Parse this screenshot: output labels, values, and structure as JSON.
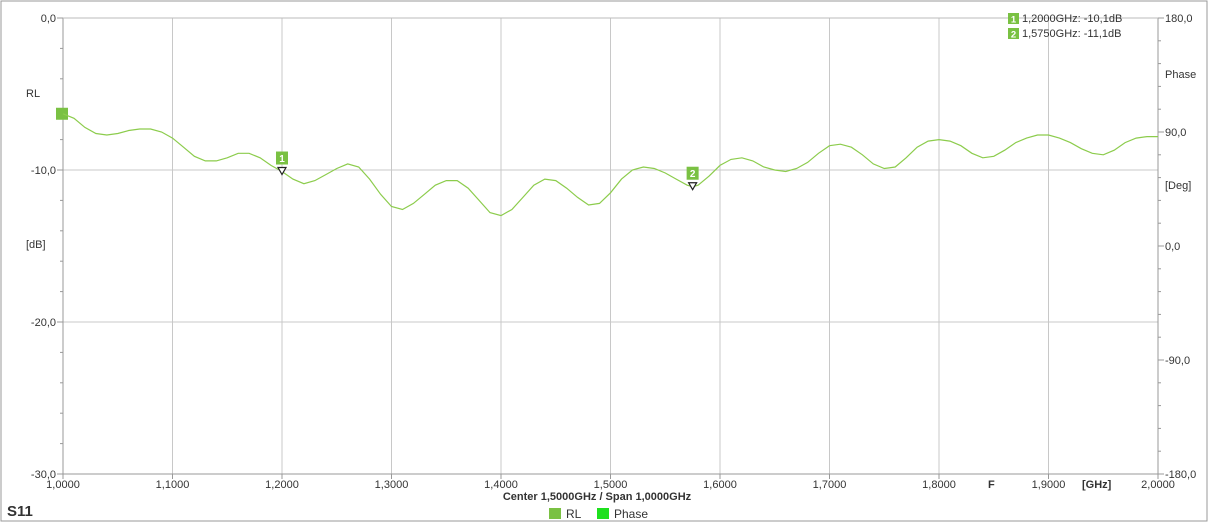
{
  "colors": {
    "trace": "#8ccc4c",
    "marker_fill": "#7ac143",
    "phase_legend": "#1ee01e",
    "grid": "#c8c8c8",
    "frame": "#999999"
  },
  "chart_data": {
    "type": "line",
    "title": "S11",
    "trace_label": "RL",
    "subtitle": "Center 1,5000GHz / Span 1,0000GHz",
    "xlabel_symbol": "F",
    "xunit": "[GHz]",
    "xlim": [
      1.0,
      2.0
    ],
    "x_ticks": [
      "1,0000",
      "1,1000",
      "1,2000",
      "1,3000",
      "1,4000",
      "1,5000",
      "1,6000",
      "1,7000",
      "1,8000",
      "1,9000",
      "2,0000"
    ],
    "y_left": {
      "unit": "[dB]",
      "ylim": [
        -30,
        0
      ],
      "tick_labels": [
        "0,0",
        "-10,0",
        "-20,0",
        "-30,0"
      ]
    },
    "y_right": {
      "title": "Phase",
      "unit": "[Deg]",
      "ylim": [
        -180,
        180
      ],
      "tick_labels": [
        "180,0",
        "90,0",
        "0,0",
        "-90,0",
        "-180,0"
      ]
    },
    "grid": true,
    "legend": [
      {
        "name": "RL"
      },
      {
        "name": "Phase"
      }
    ],
    "markers": [
      {
        "id": "1",
        "x": 1.2,
        "y": -10.1,
        "label": "1,2000GHz: -10,1dB"
      },
      {
        "id": "2",
        "x": 1.575,
        "y": -11.1,
        "label": "1,5750GHz: -11,1dB"
      }
    ],
    "series": [
      {
        "name": "RL",
        "points": [
          [
            1.0,
            -6.3
          ],
          [
            1.01,
            -6.6
          ],
          [
            1.02,
            -7.2
          ],
          [
            1.03,
            -7.6
          ],
          [
            1.04,
            -7.7
          ],
          [
            1.05,
            -7.6
          ],
          [
            1.06,
            -7.4
          ],
          [
            1.07,
            -7.3
          ],
          [
            1.08,
            -7.3
          ],
          [
            1.09,
            -7.5
          ],
          [
            1.1,
            -7.9
          ],
          [
            1.11,
            -8.5
          ],
          [
            1.12,
            -9.1
          ],
          [
            1.13,
            -9.4
          ],
          [
            1.14,
            -9.4
          ],
          [
            1.15,
            -9.2
          ],
          [
            1.16,
            -8.9
          ],
          [
            1.17,
            -8.9
          ],
          [
            1.18,
            -9.2
          ],
          [
            1.19,
            -9.7
          ],
          [
            1.2,
            -10.1
          ],
          [
            1.21,
            -10.6
          ],
          [
            1.22,
            -10.9
          ],
          [
            1.23,
            -10.7
          ],
          [
            1.24,
            -10.3
          ],
          [
            1.25,
            -9.9
          ],
          [
            1.26,
            -9.6
          ],
          [
            1.27,
            -9.8
          ],
          [
            1.28,
            -10.6
          ],
          [
            1.29,
            -11.6
          ],
          [
            1.3,
            -12.4
          ],
          [
            1.31,
            -12.6
          ],
          [
            1.32,
            -12.2
          ],
          [
            1.33,
            -11.6
          ],
          [
            1.34,
            -11.0
          ],
          [
            1.35,
            -10.7
          ],
          [
            1.36,
            -10.7
          ],
          [
            1.37,
            -11.2
          ],
          [
            1.38,
            -12.0
          ],
          [
            1.39,
            -12.8
          ],
          [
            1.4,
            -13.0
          ],
          [
            1.41,
            -12.6
          ],
          [
            1.42,
            -11.8
          ],
          [
            1.43,
            -11.0
          ],
          [
            1.44,
            -10.6
          ],
          [
            1.45,
            -10.7
          ],
          [
            1.46,
            -11.2
          ],
          [
            1.47,
            -11.8
          ],
          [
            1.48,
            -12.3
          ],
          [
            1.49,
            -12.2
          ],
          [
            1.5,
            -11.5
          ],
          [
            1.51,
            -10.6
          ],
          [
            1.52,
            -10.0
          ],
          [
            1.53,
            -9.8
          ],
          [
            1.54,
            -9.9
          ],
          [
            1.55,
            -10.2
          ],
          [
            1.56,
            -10.6
          ],
          [
            1.57,
            -11.0
          ],
          [
            1.575,
            -11.1
          ],
          [
            1.58,
            -11.0
          ],
          [
            1.59,
            -10.4
          ],
          [
            1.6,
            -9.7
          ],
          [
            1.61,
            -9.3
          ],
          [
            1.62,
            -9.2
          ],
          [
            1.63,
            -9.4
          ],
          [
            1.64,
            -9.8
          ],
          [
            1.65,
            -10.0
          ],
          [
            1.66,
            -10.1
          ],
          [
            1.67,
            -9.9
          ],
          [
            1.68,
            -9.5
          ],
          [
            1.69,
            -8.9
          ],
          [
            1.7,
            -8.4
          ],
          [
            1.71,
            -8.3
          ],
          [
            1.72,
            -8.5
          ],
          [
            1.73,
            -9.0
          ],
          [
            1.74,
            -9.6
          ],
          [
            1.75,
            -9.9
          ],
          [
            1.76,
            -9.8
          ],
          [
            1.77,
            -9.2
          ],
          [
            1.78,
            -8.5
          ],
          [
            1.79,
            -8.1
          ],
          [
            1.8,
            -8.0
          ],
          [
            1.81,
            -8.1
          ],
          [
            1.82,
            -8.4
          ],
          [
            1.83,
            -8.9
          ],
          [
            1.84,
            -9.2
          ],
          [
            1.85,
            -9.1
          ],
          [
            1.86,
            -8.7
          ],
          [
            1.87,
            -8.2
          ],
          [
            1.88,
            -7.9
          ],
          [
            1.89,
            -7.7
          ],
          [
            1.9,
            -7.7
          ],
          [
            1.91,
            -7.9
          ],
          [
            1.92,
            -8.2
          ],
          [
            1.93,
            -8.6
          ],
          [
            1.94,
            -8.9
          ],
          [
            1.95,
            -9.0
          ],
          [
            1.96,
            -8.7
          ],
          [
            1.97,
            -8.2
          ],
          [
            1.98,
            -7.9
          ],
          [
            1.99,
            -7.8
          ],
          [
            2.0,
            -7.8
          ]
        ]
      }
    ]
  }
}
